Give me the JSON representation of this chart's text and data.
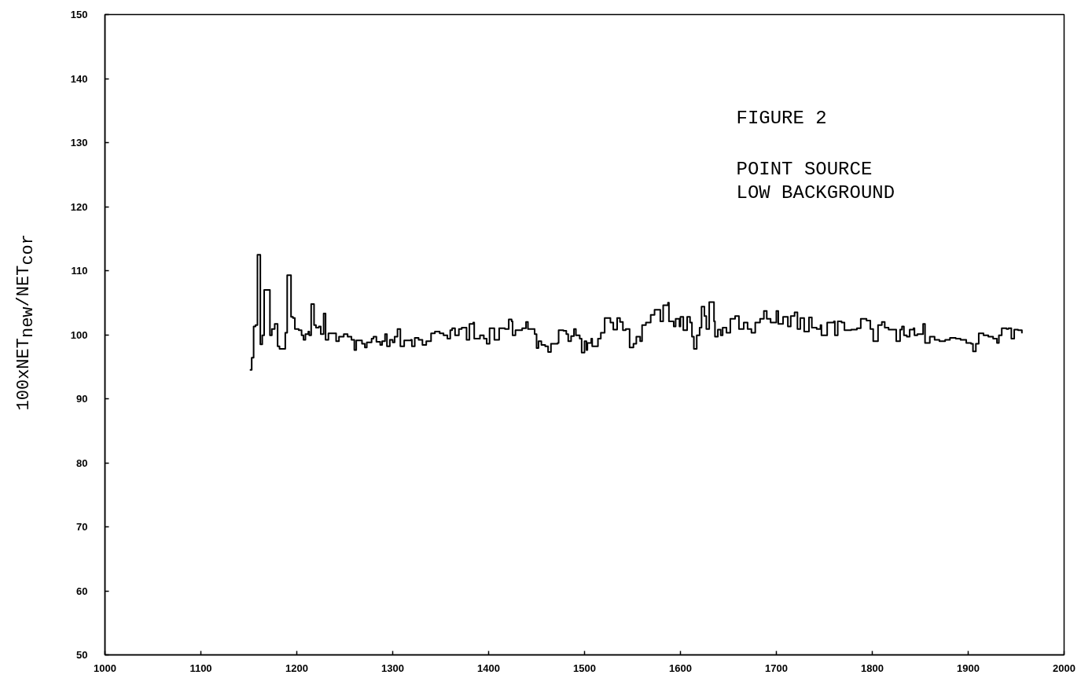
{
  "chart_data": {
    "type": "step",
    "ylabel": "100xNET$_{new}$/NET$_{cor}$",
    "annotations": [
      "FIGURE 2",
      "POINT SOURCE",
      "LOW BACKGROUND"
    ],
    "xlim": [
      1000,
      2000
    ],
    "xticks": [
      1000,
      1100,
      1200,
      1300,
      1400,
      1500,
      1600,
      1700,
      1800,
      1900,
      2000
    ],
    "ylim": [
      50,
      150
    ],
    "yticks": [
      50,
      60,
      70,
      80,
      90,
      100,
      110,
      120,
      130,
      140,
      150
    ],
    "grid": false,
    "x": [
      1151,
      1153,
      1155,
      1157,
      1159,
      1162,
      1164,
      1166,
      1172,
      1174,
      1177,
      1180,
      1182,
      1188,
      1190,
      1194,
      1196,
      1198,
      1202,
      1205,
      1207,
      1209,
      1212,
      1213,
      1215,
      1218,
      1220,
      1223,
      1225,
      1228,
      1230,
      1233,
      1241,
      1244,
      1249,
      1253,
      1257,
      1260,
      1262,
      1268,
      1271,
      1273,
      1278,
      1280,
      1283,
      1287,
      1289,
      1292,
      1294,
      1297,
      1300,
      1302,
      1305,
      1308,
      1312,
      1319,
      1320,
      1323,
      1327,
      1331,
      1335,
      1340,
      1344,
      1349,
      1353,
      1357,
      1360,
      1362,
      1365,
      1369,
      1372,
      1377,
      1380,
      1384,
      1385,
      1391,
      1395,
      1398,
      1401,
      1406,
      1411,
      1417,
      1421,
      1424,
      1425,
      1428,
      1435,
      1439,
      1441,
      1448,
      1450,
      1452,
      1455,
      1459,
      1462,
      1465,
      1472,
      1473,
      1478,
      1481,
      1483,
      1486,
      1489,
      1491,
      1495,
      1497,
      1500,
      1502,
      1503,
      1507,
      1508,
      1514,
      1517,
      1521,
      1527,
      1530,
      1534,
      1537,
      1540,
      1543,
      1547,
      1551,
      1554,
      1558,
      1560,
      1564,
      1569,
      1573,
      1579,
      1582,
      1587,
      1588,
      1593,
      1595,
      1599,
      1600,
      1603,
      1607,
      1610,
      1612,
      1614,
      1617,
      1620,
      1622,
      1625,
      1627,
      1630,
      1635,
      1636,
      1639,
      1642,
      1644,
      1648,
      1652,
      1657,
      1661,
      1666,
      1670,
      1674,
      1678,
      1683,
      1687,
      1690,
      1694,
      1700,
      1702,
      1707,
      1712,
      1715,
      1719,
      1722,
      1725,
      1729,
      1734,
      1737,
      1742,
      1746,
      1747,
      1753,
      1760,
      1761,
      1764,
      1768,
      1771,
      1778,
      1784,
      1788,
      1794,
      1798,
      1801,
      1806,
      1810,
      1813,
      1817,
      1825,
      1829,
      1831,
      1833,
      1836,
      1839,
      1843,
      1844,
      1847,
      1853,
      1855,
      1860,
      1865,
      1870,
      1876,
      1881,
      1887,
      1892,
      1898,
      1903,
      1905,
      1908,
      1911,
      1916,
      1921,
      1926,
      1930,
      1932,
      1935,
      1940,
      1942,
      1945,
      1948,
      1952,
      1956
    ],
    "series": [
      {
        "color": "#000000",
        "values": [
          94.5,
          96.4,
          101.3,
          101.5,
          112.5,
          98.5,
          99.9,
          107.0,
          99.9,
          100.9,
          101.7,
          98.2,
          97.8,
          100.3,
          109.3,
          102.8,
          102.6,
          100.9,
          100.7,
          99.9,
          99.2,
          100.1,
          100.5,
          99.9,
          104.8,
          101.5,
          101.1,
          101.3,
          100.1,
          103.3,
          99.2,
          100.2,
          99.0,
          99.7,
          100.1,
          99.7,
          99.2,
          97.6,
          99.1,
          98.6,
          98.0,
          98.8,
          99.4,
          99.7,
          98.9,
          98.4,
          99.0,
          100.1,
          98.2,
          99.2,
          98.8,
          99.7,
          100.9,
          98.2,
          99.1,
          99.2,
          98.2,
          99.5,
          99.2,
          98.4,
          99.0,
          100.2,
          100.5,
          100.2,
          99.9,
          99.4,
          100.7,
          101.0,
          99.9,
          100.9,
          101.1,
          99.2,
          101.7,
          101.9,
          99.4,
          99.9,
          99.4,
          98.6,
          101.0,
          99.2,
          101.0,
          100.9,
          102.4,
          102.1,
          99.9,
          100.7,
          101.0,
          102.0,
          100.9,
          100.1,
          97.9,
          99.0,
          98.4,
          98.2,
          97.3,
          98.6,
          98.7,
          100.7,
          100.6,
          100.1,
          99.0,
          99.8,
          100.9,
          99.9,
          99.4,
          97.2,
          99.0,
          97.6,
          98.7,
          99.4,
          98.2,
          99.4,
          100.3,
          102.6,
          101.9,
          100.8,
          102.6,
          102.0,
          100.7,
          100.9,
          98.0,
          98.6,
          99.7,
          99.0,
          101.5,
          101.9,
          103.1,
          103.9,
          102.1,
          104.6,
          105.0,
          102.1,
          101.3,
          102.5,
          101.3,
          102.8,
          100.7,
          102.8,
          101.9,
          99.7,
          97.8,
          99.9,
          101.1,
          104.4,
          102.9,
          100.9,
          105.1,
          102.1,
          99.7,
          100.8,
          99.9,
          101.1,
          100.3,
          102.5,
          102.9,
          100.9,
          101.9,
          100.9,
          100.3,
          101.9,
          102.5,
          103.7,
          102.5,
          101.9,
          103.7,
          101.7,
          102.8,
          101.3,
          102.9,
          103.5,
          100.9,
          102.6,
          100.5,
          102.7,
          101.1,
          100.9,
          101.5,
          99.9,
          101.9,
          102.1,
          99.9,
          102.1,
          101.9,
          100.7,
          100.8,
          101.0,
          102.5,
          102.2,
          100.9,
          99.0,
          101.5,
          102.0,
          101.1,
          100.8,
          99.0,
          100.8,
          101.3,
          99.9,
          99.7,
          100.8,
          101.0,
          99.9,
          100.1,
          101.7,
          98.7,
          99.7,
          99.2,
          99.0,
          99.2,
          99.5,
          99.4,
          99.2,
          98.7,
          98.6,
          97.4,
          98.6,
          100.2,
          99.9,
          99.7,
          99.4,
          98.7,
          99.9,
          101.0,
          100.9,
          101.0,
          99.4,
          100.8,
          100.7,
          100.2
        ]
      }
    ]
  }
}
